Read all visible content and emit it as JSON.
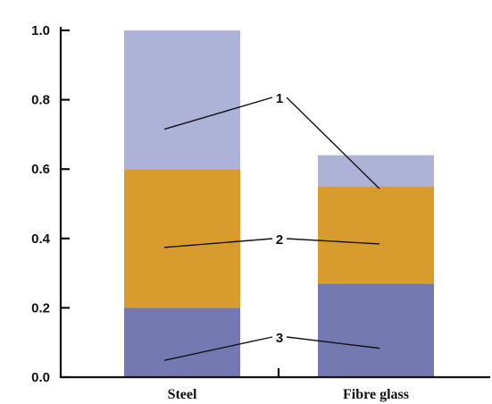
{
  "chart_data": {
    "type": "bar",
    "stacked": true,
    "categories": [
      "Steel",
      "Fibre glass"
    ],
    "series": [
      {
        "key": "3",
        "values": [
          0.2,
          0.27
        ],
        "color": "#7479b2"
      },
      {
        "key": "2",
        "values": [
          0.4,
          0.28
        ],
        "color": "#d89b2e"
      },
      {
        "key": "1",
        "values": [
          0.4,
          0.09
        ],
        "color": "#aeb2d6"
      }
    ],
    "annotations": [
      {
        "label": "1",
        "series": "1"
      },
      {
        "label": "2",
        "series": "2"
      },
      {
        "label": "3",
        "series": "3"
      }
    ],
    "yticks": [
      "0.0",
      "0.2",
      "0.4",
      "0.6",
      "0.8",
      "1.0"
    ],
    "ylim": [
      0,
      1.0
    ],
    "grid": false
  }
}
